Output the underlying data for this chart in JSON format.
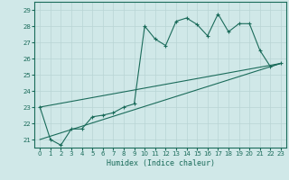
{
  "xlabel": "Humidex (Indice chaleur)",
  "bg_color": "#d0e8e8",
  "grid_color": "#b8d4d4",
  "line_color": "#1a6b5a",
  "xlim": [
    -0.5,
    23.5
  ],
  "ylim": [
    20.5,
    29.5
  ],
  "yticks": [
    21,
    22,
    23,
    24,
    25,
    26,
    27,
    28,
    29
  ],
  "xticks": [
    0,
    1,
    2,
    3,
    4,
    5,
    6,
    7,
    8,
    9,
    10,
    11,
    12,
    13,
    14,
    15,
    16,
    17,
    18,
    19,
    20,
    21,
    22,
    23
  ],
  "series1_x": [
    0,
    1,
    2,
    3,
    4,
    5,
    6,
    7,
    8,
    9,
    10,
    11,
    12,
    13,
    14,
    15,
    16,
    17,
    18,
    19,
    20,
    21,
    22,
    23
  ],
  "series1_y": [
    23.0,
    21.0,
    20.65,
    21.65,
    21.65,
    22.4,
    22.5,
    22.65,
    23.0,
    23.2,
    28.0,
    27.2,
    26.8,
    28.3,
    28.5,
    28.1,
    27.4,
    28.75,
    27.65,
    28.15,
    28.15,
    26.5,
    25.5,
    25.7
  ],
  "series2_x": [
    0,
    23
  ],
  "series2_y": [
    23.0,
    25.7
  ],
  "series3_x": [
    0,
    23
  ],
  "series3_y": [
    21.0,
    25.7
  ]
}
